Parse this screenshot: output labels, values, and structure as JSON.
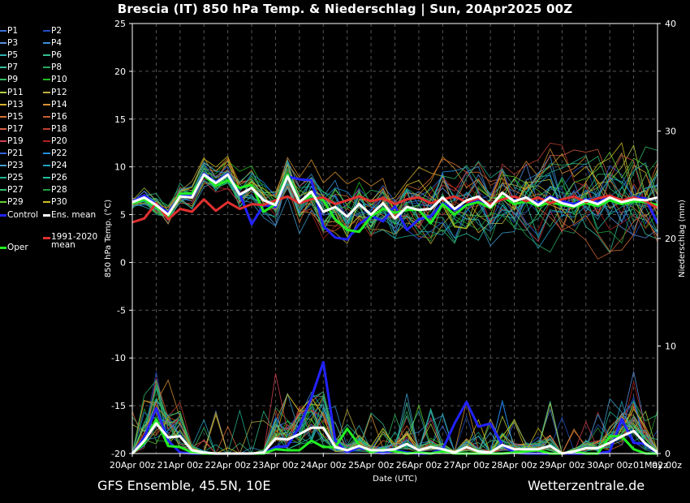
{
  "title": "Brescia  (IT)  850 hPa Temp. & Niederschlag | Sun, 20Apr2025 00Z",
  "footer": {
    "left": "GFS Ensemble, 45.5N, 10E",
    "right": "Wetterzentrale.de"
  },
  "colors": {
    "background": "#000000",
    "grid": "#555555",
    "control": "#2222ff",
    "ens_mean": "#ffffff",
    "climate": "#e03030",
    "oper": "#22ee22"
  },
  "legend": [
    {
      "label": "P1",
      "color": "#3a6fd8"
    },
    {
      "label": "P2",
      "color": "#1f4fc0"
    },
    {
      "label": "P3",
      "color": "#5a8fe0"
    },
    {
      "label": "P4",
      "color": "#3a8fd8"
    },
    {
      "label": "P5",
      "color": "#2fb0b0"
    },
    {
      "label": "P6",
      "color": "#2fc08a"
    },
    {
      "label": "P7",
      "color": "#38c0a0"
    },
    {
      "label": "P8",
      "color": "#2aa860"
    },
    {
      "label": "P9",
      "color": "#30c060"
    },
    {
      "label": "P10",
      "color": "#20c020"
    },
    {
      "label": "P11",
      "color": "#b0d040"
    },
    {
      "label": "P12",
      "color": "#c0b040"
    },
    {
      "label": "P13",
      "color": "#d8b030"
    },
    {
      "label": "P14",
      "color": "#d89030"
    },
    {
      "label": "P15",
      "color": "#d87030"
    },
    {
      "label": "P16",
      "color": "#c86030"
    },
    {
      "label": "P17",
      "color": "#d86040"
    },
    {
      "label": "P18",
      "color": "#c04030"
    },
    {
      "label": "P19",
      "color": "#d04050"
    },
    {
      "label": "P20",
      "color": "#b02020"
    },
    {
      "label": "P21",
      "color": "#3060e0"
    },
    {
      "label": "P22",
      "color": "#2090e0"
    },
    {
      "label": "P23",
      "color": "#40a0d0"
    },
    {
      "label": "P24",
      "color": "#20a0c0"
    },
    {
      "label": "P25",
      "color": "#20b090"
    },
    {
      "label": "P26",
      "color": "#20c0a0"
    },
    {
      "label": "P27",
      "color": "#30c070"
    },
    {
      "label": "P28",
      "color": "#20a040"
    },
    {
      "label": "P29",
      "color": "#60d030"
    },
    {
      "label": "P30",
      "color": "#d0c020"
    },
    {
      "label": "Control",
      "color": "#2222ff"
    },
    {
      "label": "Ens. mean",
      "color": "#ffffff"
    },
    {
      "label": "1991-2020 mean",
      "color": "#e03030"
    },
    {
      "label": "Oper",
      "color": "#22ee22"
    }
  ],
  "chart_data": {
    "type": "line",
    "x_axis": {
      "label": "Date (UTC)",
      "ticks": [
        "20Apr 00z",
        "21Apr 00z",
        "22Apr 00z",
        "23Apr 00z",
        "24Apr 00z",
        "25Apr 00z",
        "26Apr 00z",
        "27Apr 00z",
        "28Apr 00z",
        "29Apr 00z",
        "30Apr 00z",
        "01May 00z"
      ],
      "last_tick": "02z"
    },
    "y_left": {
      "label": "850 hPa Temp. (°C)",
      "min": -20,
      "max": 25,
      "ticks": [
        -20,
        -15,
        -10,
        -5,
        0,
        5,
        10,
        15,
        20,
        25
      ]
    },
    "y_right": {
      "label": "Niederschlag (mm)",
      "min": 0,
      "max": 40,
      "ticks": [
        0,
        10,
        20,
        30,
        40
      ]
    },
    "grid": true,
    "steps": 45,
    "step_hours": 6,
    "temperature": {
      "ens_mean": [
        6.3,
        6.8,
        6.0,
        5.0,
        6.9,
        6.8,
        9.2,
        8.3,
        9.2,
        7.1,
        7.8,
        6.5,
        6.0,
        9.0,
        6.3,
        7.4,
        5.3,
        5.8,
        4.8,
        6.1,
        5.0,
        6.2,
        4.6,
        5.8,
        5.5,
        5.6,
        6.8,
        5.6,
        6.5,
        6.9,
        5.8,
        7.3,
        6.4,
        6.8,
        6.0,
        6.8,
        6.2,
        5.9,
        6.5,
        6.1,
        6.8,
        6.3,
        6.6,
        6.5,
        6.8
      ],
      "control": [
        6.4,
        7.0,
        6.1,
        5.2,
        7.1,
        7.0,
        9.3,
        8.4,
        9.3,
        7.2,
        4.0,
        6.0,
        5.8,
        9.0,
        8.7,
        8.6,
        3.8,
        2.6,
        2.4,
        4.0,
        4.9,
        4.3,
        5.9,
        3.4,
        4.5,
        4.8,
        6.2,
        5.5,
        6.0,
        6.6,
        6.0,
        6.8,
        6.5,
        6.8,
        6.2,
        6.9,
        6.4,
        6.1,
        6.6,
        6.3,
        6.9,
        6.5,
        6.8,
        6.7,
        4.1
      ],
      "oper": [
        6.2,
        6.6,
        5.8,
        4.8,
        7.2,
        7.2,
        9.1,
        8.0,
        8.6,
        7.8,
        8.1,
        5.3,
        6.1,
        9.2,
        6.4,
        7.0,
        6.5,
        4.5,
        3.4,
        3.2,
        4.8,
        5.6,
        5.2,
        5.5,
        5.5,
        4.1,
        6.1,
        5.0,
        6.0,
        6.3,
        5.7,
        6.9,
        6.1,
        6.4,
        5.9,
        6.3,
        6.0,
        5.8,
        6.2,
        5.9,
        6.5,
        6.1,
        6.4,
        6.3,
        6.0
      ],
      "climate": [
        4.2,
        4.6,
        6.2,
        4.5,
        5.6,
        5.3,
        6.6,
        5.4,
        6.3,
        5.6,
        6.1,
        6.0,
        6.5,
        6.9,
        6.2,
        6.6,
        6.8,
        6.1,
        6.5,
        6.9,
        6.4,
        6.7,
        6.1,
        6.6,
        6.8,
        6.2,
        6.6,
        6.9,
        6.3,
        6.7,
        6.1,
        6.6,
        6.9,
        6.4,
        6.8,
        6.2,
        6.6,
        6.9,
        6.3,
        6.7,
        7.0,
        6.5,
        6.8,
        6.4,
        5.7
      ]
    },
    "precipitation": {
      "ens_mean": [
        0,
        1.2,
        2.8,
        1.5,
        1.6,
        0.3,
        0.1,
        0,
        0,
        0,
        0,
        0.1,
        1.4,
        1.3,
        1.8,
        2.4,
        2.4,
        0.6,
        0.3,
        0.7,
        0.3,
        0.3,
        0.4,
        0.9,
        0.3,
        0.6,
        0.4,
        0.1,
        0.6,
        0.2,
        0.1,
        0.8,
        0.4,
        0.4,
        0.4,
        0.7,
        0,
        0.2,
        0.5,
        0.5,
        1.0,
        1.6,
        2.1,
        0.9,
        0.1
      ],
      "control": [
        0,
        1.5,
        4.2,
        1.2,
        0.1,
        0,
        0,
        0,
        0,
        0,
        0,
        0,
        0.6,
        0.7,
        2.5,
        5.2,
        8.5,
        1.2,
        0.1,
        0.6,
        0.2,
        0,
        0.3,
        0.1,
        0,
        0,
        0.4,
        2.8,
        4.8,
        2.5,
        2.8,
        0.8,
        0.1,
        0,
        0,
        0,
        0,
        0,
        0,
        0,
        0.2,
        3.2,
        1.0,
        0.9,
        0
      ],
      "oper": [
        0,
        1.0,
        3.2,
        0.7,
        0.6,
        0.1,
        0,
        0,
        0,
        0,
        0,
        0,
        0.4,
        0.3,
        0.3,
        1.2,
        0.6,
        0.6,
        2.3,
        0.8,
        0.1,
        0.4,
        0.2,
        0,
        0.1,
        0,
        0.2,
        0,
        0,
        0,
        0,
        0,
        0.1,
        0.2,
        0.3,
        0,
        0,
        0.2,
        0,
        0,
        1.6,
        1.6,
        0.4,
        0,
        0
      ]
    }
  }
}
